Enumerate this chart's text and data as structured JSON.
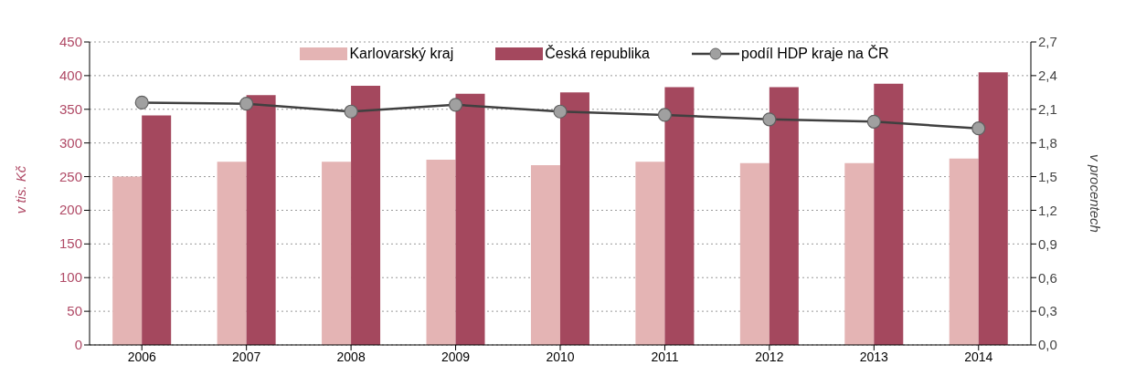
{
  "chart_data": {
    "type": "bar",
    "categories": [
      "2006",
      "2007",
      "2008",
      "2009",
      "2010",
      "2011",
      "2012",
      "2013",
      "2014"
    ],
    "series": [
      {
        "name": "Karlovarský kraj",
        "color": "#e4b4b4",
        "values": [
          250,
          272,
          272,
          275,
          267,
          272,
          270,
          270,
          277
        ]
      },
      {
        "name": "Česká republika",
        "color": "#a4485e",
        "values": [
          341,
          371,
          385,
          373,
          375,
          383,
          383,
          388,
          405
        ]
      },
      {
        "name": "podíl HDP kraje na ČR",
        "type": "line",
        "axis": "y2",
        "color": "#404040",
        "marker": "circle",
        "values": [
          2.16,
          2.15,
          2.08,
          2.14,
          2.08,
          2.05,
          2.01,
          1.99,
          1.93
        ]
      }
    ],
    "ylabel": "v tis. Kč",
    "y2label": "v procentech",
    "ylim": [
      0,
      450
    ],
    "yticks": [
      0,
      50,
      100,
      150,
      200,
      250,
      300,
      350,
      400,
      450
    ],
    "y2lim": [
      0,
      2.7
    ],
    "y2ticks": [
      {
        "value": 0,
        "label": "0,0"
      },
      {
        "value": 0.3,
        "label": "0,3"
      },
      {
        "value": 0.6,
        "label": "0,6"
      },
      {
        "value": 0.9,
        "label": "0,9"
      },
      {
        "value": 1.2,
        "label": "1,2"
      },
      {
        "value": 1.5,
        "label": "1,5"
      },
      {
        "value": 1.8,
        "label": "1,8"
      },
      {
        "value": 2.1,
        "label": "2,1"
      },
      {
        "value": 2.4,
        "label": "2,4"
      },
      {
        "value": 2.7,
        "label": "2,7"
      }
    ],
    "grid": "y",
    "legend": "top"
  }
}
